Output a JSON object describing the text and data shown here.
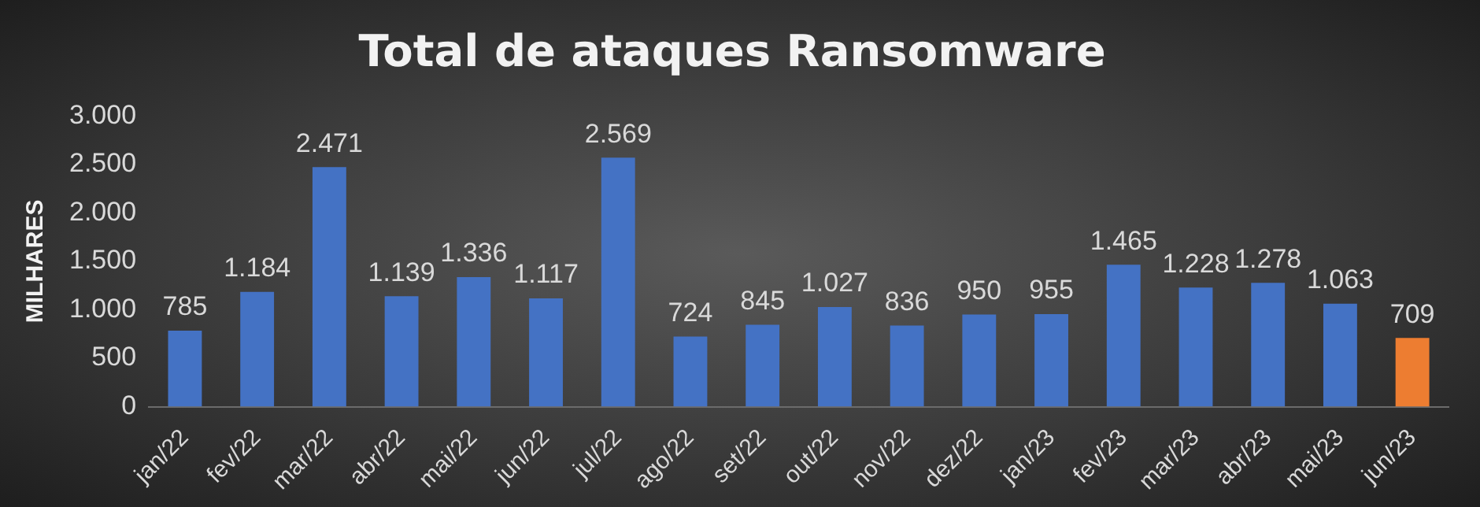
{
  "chart_data": {
    "type": "bar",
    "title": "Total de ataques Ransomware",
    "ylabel": "MILHARES",
    "categories": [
      "jan/22",
      "fev/22",
      "mar/22",
      "abr/22",
      "mai/22",
      "jun/22",
      "jul/22",
      "ago/22",
      "set/22",
      "out/22",
      "nov/22",
      "dez/22",
      "jan/23",
      "fev/23",
      "mar/23",
      "abr/23",
      "mai/23",
      "jun/23"
    ],
    "values": [
      785,
      1184,
      2471,
      1139,
      1336,
      1117,
      2569,
      724,
      845,
      1027,
      836,
      950,
      955,
      1465,
      1228,
      1278,
      1063,
      709
    ],
    "value_labels": [
      "785",
      "1.184",
      "2.471",
      "1.139",
      "1.336",
      "1.117",
      "2.569",
      "724",
      "845",
      "1.027",
      "836",
      "950",
      "955",
      "1.465",
      "1.228",
      "1.278",
      "1.063",
      "709"
    ],
    "colors": [
      "#4472c4",
      "#4472c4",
      "#4472c4",
      "#4472c4",
      "#4472c4",
      "#4472c4",
      "#4472c4",
      "#4472c4",
      "#4472c4",
      "#4472c4",
      "#4472c4",
      "#4472c4",
      "#4472c4",
      "#4472c4",
      "#4472c4",
      "#4472c4",
      "#4472c4",
      "#ed7d31"
    ],
    "ylim": [
      0,
      3000
    ],
    "yticks": [
      0,
      500,
      {
        "value": 1000,
        "label": "1.000"
      },
      {
        "value": 1500,
        "label": "1.500"
      },
      {
        "value": 2000,
        "label": "2.000"
      },
      {
        "value": 2500,
        "label": "2.500"
      },
      {
        "value": 3000,
        "label": "3.000"
      }
    ],
    "grid": false,
    "legend": false
  }
}
